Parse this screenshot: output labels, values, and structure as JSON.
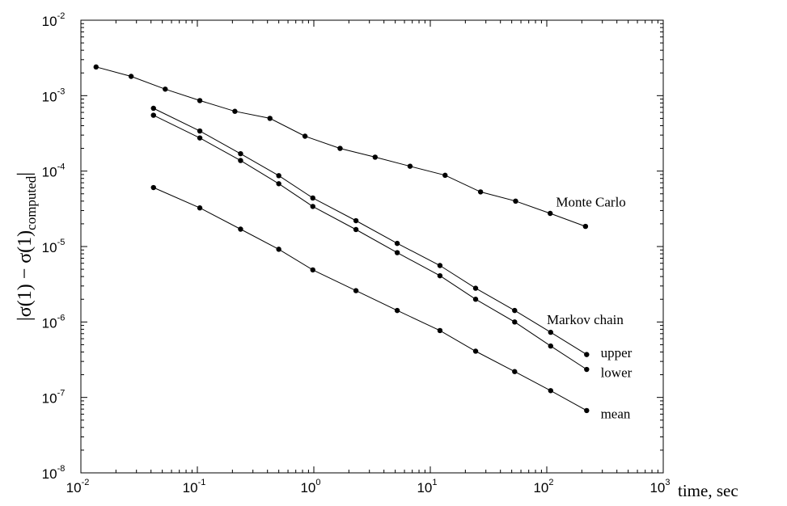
{
  "chart_data": {
    "type": "line",
    "title": "",
    "xlabel": "time, sec",
    "ylabel": "|σ(1) − σ(1)computed|",
    "ylabel_parts": {
      "main": "|σ(1) − σ(1)",
      "sub": "computed",
      "close": "|"
    },
    "xscale": "log",
    "yscale": "log",
    "xlim": [
      0.01,
      1000
    ],
    "ylim": [
      1e-08,
      0.01
    ],
    "grid": false,
    "x_ticks": [
      {
        "base": "10",
        "exp": "-2",
        "value": 0.01
      },
      {
        "base": "10",
        "exp": "-1",
        "value": 0.1
      },
      {
        "base": "10",
        "exp": "0",
        "value": 1
      },
      {
        "base": "10",
        "exp": "1",
        "value": 10
      },
      {
        "base": "10",
        "exp": "2",
        "value": 100
      },
      {
        "base": "10",
        "exp": "3",
        "value": 1000
      }
    ],
    "y_ticks": [
      {
        "base": "10",
        "exp": "-8",
        "value": 1e-08
      },
      {
        "base": "10",
        "exp": "-7",
        "value": 1e-07
      },
      {
        "base": "10",
        "exp": "-6",
        "value": 1e-06
      },
      {
        "base": "10",
        "exp": "-5",
        "value": 1e-05
      },
      {
        "base": "10",
        "exp": "-4",
        "value": 0.0001
      },
      {
        "base": "10",
        "exp": "-3",
        "value": 0.001
      },
      {
        "base": "10",
        "exp": "-2",
        "value": 0.01
      }
    ],
    "series": [
      {
        "name": "Monte Carlo",
        "x": [
          0.0135,
          0.027,
          0.053,
          0.105,
          0.21,
          0.42,
          0.84,
          1.68,
          3.36,
          6.7,
          13.4,
          27,
          54,
          107,
          215
        ],
        "y": [
          0.0024,
          0.0018,
          0.00122,
          0.00086,
          0.00062,
          0.0005,
          0.00029,
          0.0002,
          0.000153,
          0.000116,
          8.8e-05,
          5.3e-05,
          4e-05,
          2.75e-05,
          1.85e-05
        ]
      },
      {
        "name": "upper",
        "x": [
          0.042,
          0.105,
          0.235,
          0.5,
          0.98,
          2.3,
          5.2,
          12.1,
          24.5,
          53,
          108,
          220
        ],
        "y": [
          0.00068,
          0.00034,
          0.00017,
          8.7e-05,
          4.4e-05,
          2.2e-05,
          1.1e-05,
          5.6e-06,
          2.8e-06,
          1.42e-06,
          7.3e-07,
          3.7e-07
        ]
      },
      {
        "name": "lower",
        "x": [
          0.042,
          0.105,
          0.235,
          0.5,
          0.98,
          2.3,
          5.2,
          12.1,
          24.5,
          53,
          108,
          220
        ],
        "y": [
          0.00055,
          0.000275,
          0.000138,
          6.8e-05,
          3.4e-05,
          1.68e-05,
          8.3e-06,
          4.1e-06,
          2e-06,
          1e-06,
          4.8e-07,
          2.35e-07
        ]
      },
      {
        "name": "mean",
        "x": [
          0.042,
          0.105,
          0.235,
          0.5,
          0.98,
          2.3,
          5.2,
          12.1,
          24.5,
          53,
          108,
          220
        ],
        "y": [
          6.05e-05,
          3.25e-05,
          1.7e-05,
          9.2e-06,
          4.9e-06,
          2.6e-06,
          1.42e-06,
          7.7e-07,
          4.1e-07,
          2.2e-07,
          1.23e-07,
          6.7e-08
        ]
      }
    ],
    "annotations": [
      {
        "text": "Monte Carlo",
        "x": 120,
        "y": 3.4e-05
      },
      {
        "text": "Markov chain",
        "x": 100,
        "y": 9.4e-07
      },
      {
        "text": "upper",
        "x": 290,
        "y": 3.4e-07
      },
      {
        "text": "lower",
        "x": 290,
        "y": 1.85e-07
      },
      {
        "text": "mean",
        "x": 290,
        "y": 5.3e-08
      }
    ]
  }
}
